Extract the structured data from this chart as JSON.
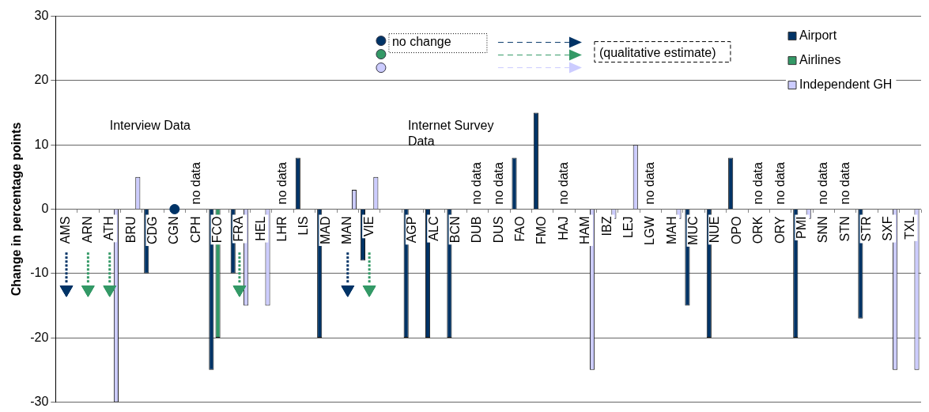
{
  "chart_data": {
    "type": "bar",
    "ylabel": "Change in percentage points",
    "categories": [
      "AMS",
      "ARN",
      "ATH",
      "BRU",
      "CDG",
      "CGN",
      "CPH",
      "FCO",
      "FRA",
      "HEL",
      "LHR",
      "LIS",
      "MAD",
      "MAN",
      "VIE",
      null,
      "AGP",
      "ALC",
      "BCN",
      "DUB",
      "DUS",
      "FAO",
      "FMO",
      "HAJ",
      "HAM",
      "IBZ",
      "LEJ",
      "LGW",
      "MAH",
      "MUC",
      "NUE",
      "OPO",
      "ORK",
      "ORY",
      "PMI",
      "SNN",
      "STN",
      "STR",
      "SXF",
      "TXL"
    ],
    "series": [
      {
        "name": "Airport",
        "color": "#003366",
        "values": [
          null,
          null,
          null,
          null,
          -10,
          null,
          null,
          -25,
          -10,
          null,
          null,
          8,
          -20,
          null,
          -8,
          null,
          -20,
          -20,
          -20,
          null,
          null,
          8,
          15,
          null,
          null,
          null,
          null,
          null,
          null,
          -15,
          -20,
          8,
          null,
          null,
          -20,
          null,
          null,
          -17,
          null,
          null
        ],
        "value_labels": [
          null,
          null,
          null,
          null,
          null,
          null,
          "no data",
          null,
          null,
          null,
          "no data",
          null,
          null,
          null,
          null,
          null,
          null,
          null,
          null,
          "no data",
          "no data",
          null,
          null,
          "no data",
          null,
          null,
          null,
          "no data",
          null,
          null,
          null,
          null,
          "no data",
          "no data",
          null,
          "no data",
          "no data",
          null,
          null,
          null
        ]
      },
      {
        "name": "Airlines",
        "color": "#339966",
        "values": [
          null,
          null,
          null,
          null,
          null,
          null,
          null,
          -20,
          null,
          null,
          null,
          null,
          null,
          null,
          null,
          null,
          null,
          null,
          null,
          null,
          null,
          null,
          null,
          null,
          null,
          null,
          null,
          null,
          null,
          null,
          null,
          null,
          null,
          null,
          null,
          null,
          null,
          null,
          null,
          null
        ]
      },
      {
        "name": "Independent GH",
        "color": "#ccccff",
        "values": [
          null,
          null,
          -30,
          5,
          null,
          null,
          null,
          null,
          -15,
          -15,
          null,
          null,
          null,
          3,
          5,
          null,
          null,
          null,
          null,
          null,
          null,
          null,
          null,
          null,
          -25,
          -1.5,
          10,
          null,
          -1.5,
          null,
          null,
          null,
          null,
          null,
          -1.5,
          null,
          null,
          null,
          -25,
          -25
        ]
      },
      {
        "type": "scatter",
        "name": "no change",
        "marker": "circle",
        "color": "#003366",
        "x": [
          "CGN"
        ],
        "values": [
          0
        ]
      },
      {
        "type": "scatter",
        "name": "(qualitative estimate)",
        "marker": "triangle",
        "x": [
          "AMS",
          "ARN",
          "ATH",
          "FRA",
          "MAN",
          "VIE"
        ],
        "values": [
          -12.5,
          -12.5,
          -12.5,
          -12.5,
          -12.5,
          -12.5
        ],
        "colors": [
          "#003366",
          "#339966",
          "#339966",
          "#339966",
          "#003366",
          "#339966"
        ]
      }
    ],
    "ylim": [
      -30,
      30
    ],
    "yticks": [
      -30,
      -20,
      -10,
      0,
      10,
      20,
      30
    ],
    "grid": "y",
    "legend": "top right",
    "annotations": [
      "Interview Data",
      "Internet Survey Data"
    ]
  }
}
